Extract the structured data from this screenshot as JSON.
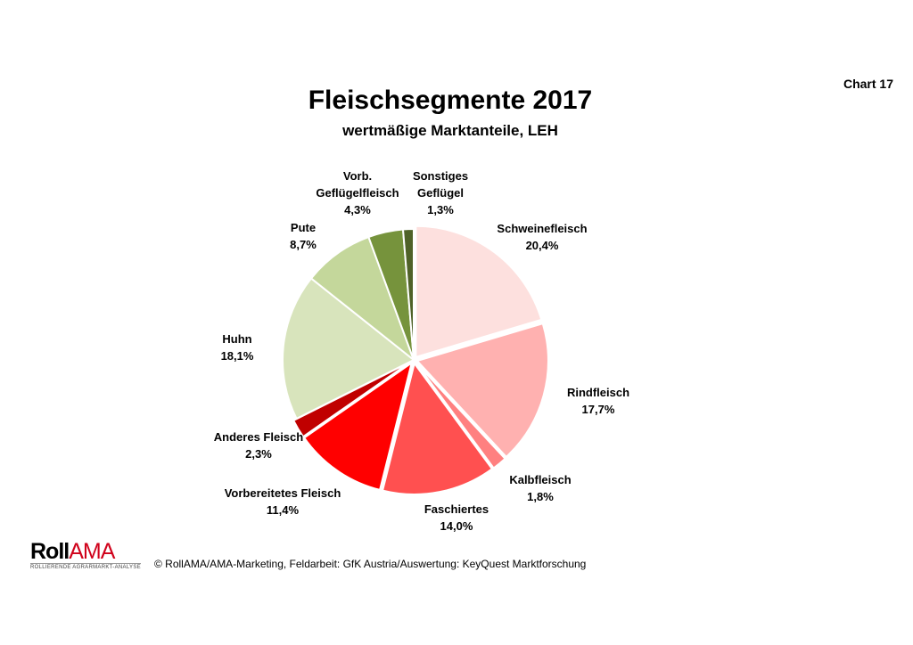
{
  "chart_number": "Chart 17",
  "chart_data": {
    "type": "pie",
    "title": "Fleischsegmente 2017",
    "subtitle": "wertmäßige Marktanteile, LEH",
    "unit": "%",
    "slices": [
      {
        "label": "Schweinefleisch",
        "value": 20.4,
        "display": "20,4%",
        "color": "#fde0de"
      },
      {
        "label": "Rindfleisch",
        "value": 17.7,
        "display": "17,7%",
        "color": "#ffb1b0"
      },
      {
        "label": "Kalbfleisch",
        "value": 1.8,
        "display": "1,8%",
        "color": "#ff8080"
      },
      {
        "label": "Faschiertes",
        "value": 14.0,
        "display": "14,0%",
        "color": "#ff5050"
      },
      {
        "label": "Vorbereitetes Fleisch",
        "value": 11.4,
        "display": "11,4%",
        "color": "#ff0000"
      },
      {
        "label": "Anderes Fleisch",
        "value": 2.3,
        "display": "2,3%",
        "color": "#c00000"
      },
      {
        "label": "Huhn",
        "value": 18.1,
        "display": "18,1%",
        "color": "#d8e4bc"
      },
      {
        "label": "Pute",
        "value": 8.7,
        "display": "8,7%",
        "color": "#c4d79b"
      },
      {
        "label": "Vorb. Geflügelfleisch",
        "value": 4.3,
        "display": "4,3%",
        "color": "#76933c"
      },
      {
        "label": "Sonstiges Geflügel",
        "value": 1.3,
        "display": "1,3%",
        "color": "#4f6228"
      }
    ]
  },
  "footer": {
    "logo_text_a": "Roll",
    "logo_text_b": "AMA",
    "logo_tagline": "ROLLIERENDE AGRARMARKT-ANALYSE",
    "copyright": "© RollAMA/AMA-Marketing, Feldarbeit: GfK Austria/Auswertung: KeyQuest Marktforschung"
  }
}
